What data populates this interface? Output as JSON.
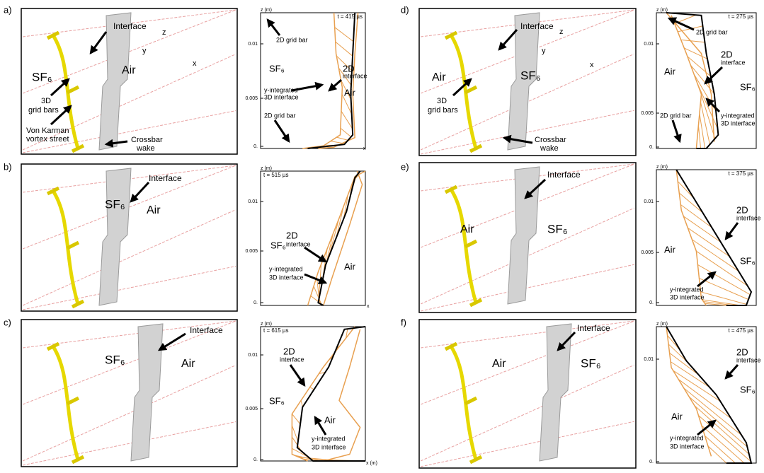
{
  "panels": [
    {
      "letter": "a)",
      "render": {
        "labels": [
          "Interface",
          "z",
          "y",
          "x",
          "SF₆",
          "Air",
          "3D",
          "grid bars",
          "Von Karman",
          "vortex street",
          "Crossbar",
          "wake"
        ]
      },
      "plot": {
        "z_label": "z (m)",
        "time": "t = 415 µs",
        "yticks": [
          "0.01",
          "0.005",
          "0."
        ],
        "x_label": "x",
        "labels": [
          "2D grid bar",
          "SF₆",
          "2D",
          "interface",
          "y-integrated",
          "3D interface",
          "Air",
          "2D grid bar"
        ]
      }
    },
    {
      "letter": "b)",
      "render": {
        "labels": [
          "Interface",
          "SF₆",
          "Air"
        ]
      },
      "plot": {
        "z_label": "z (m)",
        "time": "t = 515 µs",
        "yticks": [
          "0.01",
          "0.005",
          "0."
        ],
        "x_label": "x",
        "labels": [
          "2D",
          "interface",
          "SF₆",
          "y-integrated",
          "3D interface",
          "Air"
        ]
      }
    },
    {
      "letter": "c)",
      "render": {
        "labels": [
          "Interface",
          "SF₆",
          "Air"
        ]
      },
      "plot": {
        "z_label": "z (m)",
        "time": "t = 615 µs",
        "yticks": [
          "0.01",
          "0.005",
          "0."
        ],
        "x_label": "x (m)",
        "labels": [
          "2D",
          "interface",
          "SF₆",
          "Air",
          "y-integrated",
          "3D interface"
        ]
      }
    },
    {
      "letter": "d)",
      "render": {
        "labels": [
          "Interface",
          "z",
          "y",
          "x",
          "Air",
          "SF₆",
          "3D",
          "grid bars",
          "Crossbar",
          "wake"
        ]
      },
      "plot": {
        "z_label": "z (m)",
        "time": "t = 275 µs",
        "yticks": [
          "0.01",
          "0.005",
          "0."
        ],
        "labels": [
          "2D grid bar",
          "Air",
          "2D",
          "interface",
          "SF₆",
          "2D grid bar",
          "y-integrated",
          "3D interface"
        ]
      }
    },
    {
      "letter": "e)",
      "render": {
        "labels": [
          "Interface",
          "Air",
          "SF₆"
        ]
      },
      "plot": {
        "z_label": "z (m)",
        "time": "t = 375 µs",
        "yticks": [
          "0.01",
          "0.005",
          "0."
        ],
        "labels": [
          "2D",
          "interface",
          "Air",
          "SF₆",
          "y-integrated",
          "3D interface"
        ]
      }
    },
    {
      "letter": "f)",
      "render": {
        "labels": [
          "Interface",
          "Air",
          "SF₆"
        ]
      },
      "plot": {
        "z_label": "z (m)",
        "time": "t = 475 µs",
        "yticks": [
          "0.01",
          "0."
        ],
        "labels": [
          "2D",
          "interface",
          "SF₆",
          "Air",
          "y-integrated",
          "3D interface"
        ]
      }
    }
  ]
}
